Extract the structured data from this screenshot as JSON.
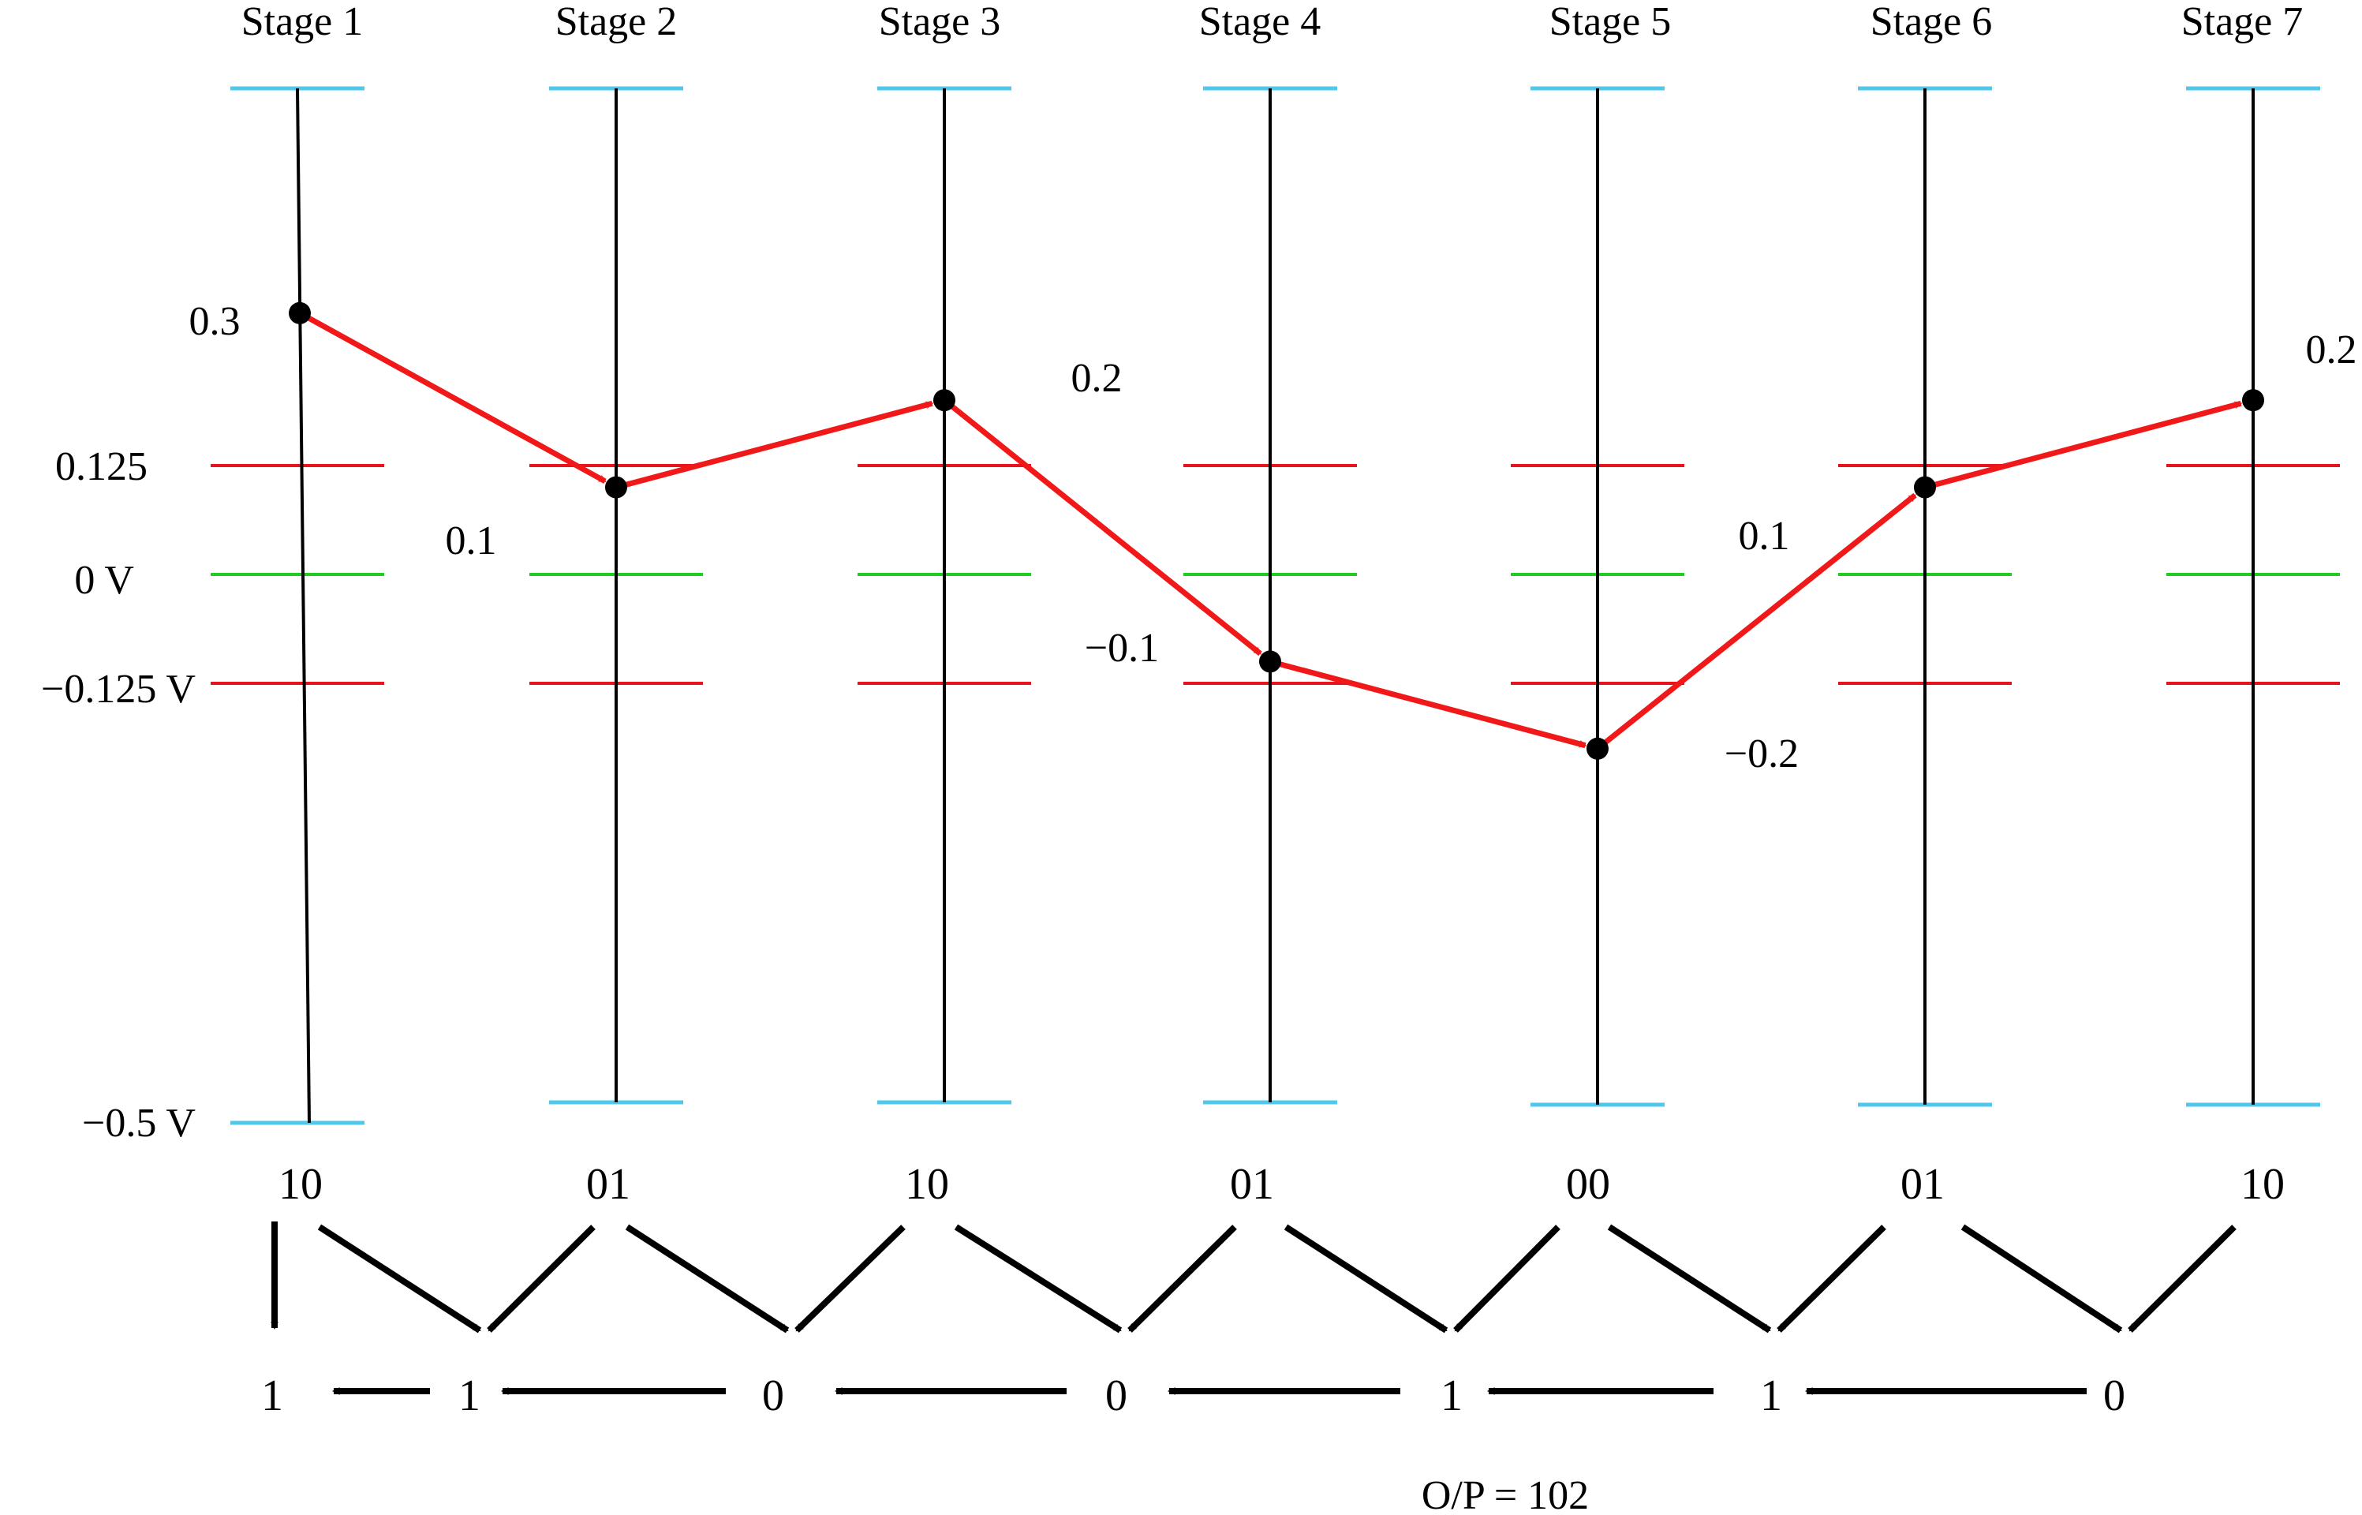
{
  "colors": {
    "rail": "#000000",
    "limit_line": "#4fc8ec",
    "threshold_line": "#e8141c",
    "zero_line": "#22cc22",
    "trace": "#f01818",
    "point": "#000000",
    "arrow": "#000000"
  },
  "stages": [
    {
      "label": "Stage 1",
      "value": 0.3,
      "value_label": "0.3",
      "code": "10"
    },
    {
      "label": "Stage 2",
      "value": 0.1,
      "value_label": "0.1",
      "code": "01"
    },
    {
      "label": "Stage 3",
      "value": 0.2,
      "value_label": "0.2",
      "code": "10"
    },
    {
      "label": "Stage 4",
      "value": -0.1,
      "value_label": "−0.1",
      "code": "01"
    },
    {
      "label": "Stage 5",
      "value": -0.2,
      "value_label": "−0.2",
      "code": "00"
    },
    {
      "label": "Stage 6",
      "value": 0.1,
      "value_label": "0.1",
      "code": "01"
    },
    {
      "label": "Stage 7",
      "value": 0.2,
      "value_label": "0.2",
      "code": "10"
    }
  ],
  "levels": {
    "upper_threshold": {
      "value": 0.125,
      "label": "0.125"
    },
    "zero": {
      "value": 0,
      "label": "0 V"
    },
    "lower_threshold": {
      "value": -0.125,
      "label": "−0.125 V"
    },
    "bottom": {
      "value": -0.5,
      "label": "−0.5 V"
    }
  },
  "output_bits": [
    "1",
    "1",
    "0",
    "0",
    "1",
    "1",
    "0"
  ],
  "output_label": "O/P = 102"
}
